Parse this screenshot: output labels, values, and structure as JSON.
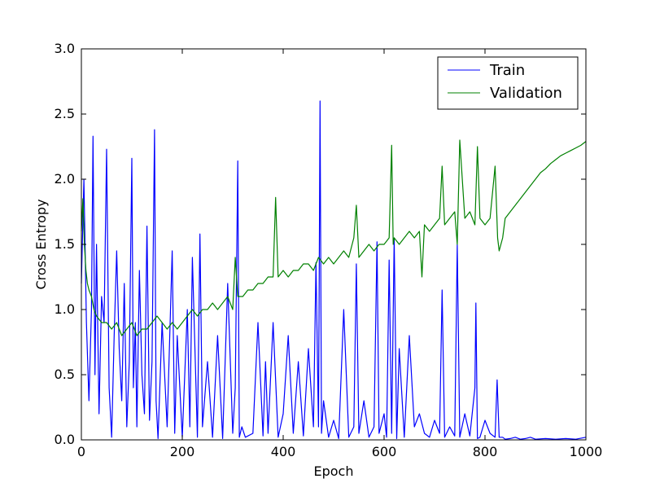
{
  "chart_data": {
    "type": "line",
    "title": "",
    "xlabel": "Epoch",
    "ylabel": "Cross Entropy",
    "xlim": [
      0,
      1000
    ],
    "ylim": [
      0,
      3.0
    ],
    "xticks": [
      0,
      200,
      400,
      600,
      800,
      1000
    ],
    "xtick_labels": [
      "0",
      "200",
      "400",
      "600",
      "800",
      "1000"
    ],
    "yticks": [
      0,
      0.5,
      1.0,
      1.5,
      2.0,
      2.5,
      3.0
    ],
    "ytick_labels": [
      "0.0",
      "0.5",
      "1.0",
      "1.5",
      "2.0",
      "2.5",
      "3.0"
    ],
    "grid": false,
    "legend": {
      "location": "upper right"
    },
    "series": [
      {
        "name": "Train",
        "color": "#0000ff",
        "x": [
          0,
          5,
          10,
          15,
          20,
          23,
          27,
          30,
          35,
          40,
          45,
          50,
          55,
          60,
          65,
          70,
          75,
          80,
          85,
          90,
          95,
          100,
          103,
          107,
          110,
          115,
          120,
          125,
          130,
          135,
          140,
          145,
          148,
          152,
          160,
          170,
          180,
          185,
          190,
          200,
          210,
          215,
          220,
          230,
          235,
          240,
          250,
          260,
          270,
          280,
          290,
          300,
          305,
          310,
          313,
          318,
          325,
          340,
          350,
          360,
          365,
          370,
          380,
          390,
          400,
          410,
          420,
          430,
          440,
          450,
          460,
          465,
          470,
          473,
          476,
          480,
          490,
          500,
          510,
          520,
          530,
          540,
          545,
          550,
          560,
          570,
          580,
          586,
          590,
          600,
          605,
          610,
          615,
          620,
          625,
          630,
          640,
          650,
          660,
          670,
          680,
          690,
          700,
          710,
          715,
          720,
          730,
          740,
          745,
          750,
          760,
          770,
          780,
          782,
          785,
          790,
          800,
          810,
          820,
          824,
          828,
          835,
          840,
          850,
          860,
          870,
          880,
          890,
          900,
          920,
          940,
          960,
          980,
          1000
        ],
        "values": [
          1.2,
          2.0,
          0.9,
          0.3,
          1.0,
          2.33,
          0.5,
          1.5,
          0.2,
          1.1,
          0.9,
          2.23,
          0.4,
          0.02,
          0.8,
          1.45,
          0.7,
          0.3,
          1.2,
          0.1,
          0.6,
          2.16,
          0.4,
          0.9,
          0.1,
          1.3,
          0.5,
          0.2,
          1.64,
          0.15,
          0.6,
          2.38,
          0.3,
          0.01,
          0.9,
          0.1,
          1.45,
          0.05,
          0.8,
          0.02,
          1.0,
          0.1,
          1.4,
          0.02,
          1.58,
          0.1,
          0.6,
          0.02,
          0.8,
          0.01,
          1.2,
          0.05,
          0.4,
          2.14,
          0.02,
          0.1,
          0.02,
          0.05,
          0.9,
          0.03,
          0.6,
          0.05,
          0.9,
          0.02,
          0.2,
          0.8,
          0.05,
          0.6,
          0.03,
          0.7,
          0.1,
          1.36,
          0.1,
          2.6,
          0.05,
          0.3,
          0.02,
          0.15,
          0.01,
          1.0,
          0.02,
          0.1,
          1.35,
          0.05,
          0.3,
          0.02,
          0.1,
          1.52,
          0.05,
          0.2,
          0.02,
          1.38,
          0.05,
          1.55,
          0.01,
          0.7,
          0.02,
          0.8,
          0.1,
          0.2,
          0.05,
          0.02,
          0.15,
          0.05,
          1.15,
          0.02,
          0.1,
          0.03,
          1.5,
          0.02,
          0.2,
          0.03,
          0.4,
          1.05,
          0.01,
          0.02,
          0.15,
          0.05,
          0.02,
          0.46,
          0.02,
          0.02,
          0.005,
          0.01,
          0.02,
          0.005,
          0.01,
          0.02,
          0.005,
          0.01,
          0.005,
          0.01,
          0.005,
          0.02
        ]
      },
      {
        "name": "Validation",
        "color": "#008000",
        "x": [
          0,
          3,
          6,
          9,
          12,
          15,
          20,
          25,
          30,
          40,
          50,
          60,
          70,
          80,
          90,
          100,
          110,
          120,
          130,
          140,
          150,
          160,
          170,
          180,
          190,
          200,
          210,
          220,
          230,
          240,
          250,
          260,
          270,
          280,
          290,
          300,
          305,
          310,
          320,
          330,
          340,
          350,
          360,
          370,
          380,
          385,
          390,
          400,
          410,
          420,
          430,
          440,
          450,
          460,
          470,
          480,
          490,
          500,
          510,
          520,
          530,
          540,
          545,
          550,
          560,
          570,
          580,
          590,
          600,
          610,
          615,
          618,
          620,
          630,
          640,
          650,
          660,
          670,
          675,
          680,
          690,
          700,
          710,
          715,
          720,
          730,
          740,
          745,
          750,
          760,
          770,
          780,
          785,
          790,
          800,
          810,
          820,
          825,
          828,
          835,
          840,
          850,
          860,
          870,
          880,
          890,
          900,
          910,
          920,
          930,
          940,
          950,
          960,
          970,
          980,
          990,
          1000
        ],
        "values": [
          1.6,
          1.85,
          1.5,
          1.3,
          1.2,
          1.15,
          1.1,
          1.0,
          0.95,
          0.9,
          0.9,
          0.85,
          0.9,
          0.8,
          0.85,
          0.9,
          0.8,
          0.85,
          0.85,
          0.9,
          0.95,
          0.9,
          0.85,
          0.9,
          0.85,
          0.9,
          0.95,
          1.0,
          0.95,
          1.0,
          1.0,
          1.05,
          1.0,
          1.05,
          1.1,
          1.0,
          1.4,
          1.1,
          1.1,
          1.15,
          1.15,
          1.2,
          1.2,
          1.25,
          1.25,
          1.86,
          1.25,
          1.3,
          1.25,
          1.3,
          1.3,
          1.35,
          1.35,
          1.3,
          1.4,
          1.35,
          1.4,
          1.35,
          1.4,
          1.45,
          1.4,
          1.55,
          1.8,
          1.4,
          1.45,
          1.5,
          1.45,
          1.5,
          1.5,
          1.55,
          2.26,
          1.5,
          1.55,
          1.5,
          1.55,
          1.6,
          1.55,
          1.6,
          1.25,
          1.65,
          1.6,
          1.65,
          1.7,
          2.1,
          1.65,
          1.7,
          1.75,
          1.5,
          2.3,
          1.7,
          1.75,
          1.65,
          2.25,
          1.7,
          1.65,
          1.7,
          2.1,
          1.55,
          1.45,
          1.55,
          1.7,
          1.75,
          1.8,
          1.85,
          1.9,
          1.95,
          2.0,
          2.05,
          2.08,
          2.12,
          2.15,
          2.18,
          2.2,
          2.22,
          2.24,
          2.26,
          2.29
        ]
      }
    ]
  }
}
